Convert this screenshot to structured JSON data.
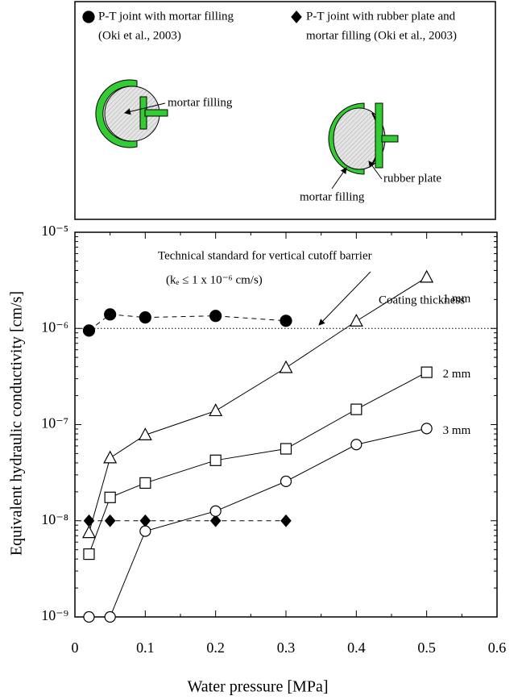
{
  "chart_data": {
    "type": "line",
    "x_label": "Water pressure [MPa]",
    "y_label": "Equivalent hydraulic conductivity [cm/s]",
    "xlim": [
      0,
      0.6
    ],
    "xticks": [
      0,
      0.1,
      0.2,
      0.3,
      0.4,
      0.5,
      0.6
    ],
    "ylim": [
      1e-09,
      1e-05
    ],
    "log_y": true,
    "yticks": [
      {
        "value": 1e-09,
        "label": "10⁻⁹"
      },
      {
        "value": 1e-08,
        "label": "10⁻⁸"
      },
      {
        "value": 1e-07,
        "label": "10⁻⁷"
      },
      {
        "value": 1e-06,
        "label": "10⁻⁶"
      },
      {
        "value": 1e-05,
        "label": "10⁻⁵"
      }
    ],
    "threshold": 1e-06,
    "annotations": [
      "Technical standard for vertical cutoff barrier",
      "(kₑ ≤ 1 x 10⁻⁶ cm/s)",
      "Coating thickness"
    ],
    "legend_panel": {
      "entries": [
        {
          "lines": [
            "P-T joint with mortar filling",
            "(Oki et al., 2003)"
          ],
          "labels": [
            "mortar filling"
          ]
        },
        {
          "lines": [
            "P-T joint with rubber plate and",
            "mortar filling (Oki et al., 2003)"
          ],
          "labels": [
            "rubber plate",
            "mortar filling"
          ]
        }
      ]
    },
    "series": [
      {
        "legend": 0,
        "marker": "circle-filled",
        "dashed": true,
        "color": "#000000",
        "x": [
          0.02,
          0.05,
          0.1,
          0.2,
          0.3
        ],
        "values": [
          9.5e-07,
          1.4e-06,
          1.3e-06,
          1.35e-06,
          1.2e-06
        ]
      },
      {
        "legend": 1,
        "marker": "diamond-filled",
        "dashed": true,
        "color": "#000000",
        "x": [
          0.02,
          0.05,
          0.1,
          0.2,
          0.3
        ],
        "values": [
          1e-08,
          1e-08,
          1e-08,
          1e-08,
          1e-08
        ]
      },
      {
        "name": "1 mm",
        "marker": "triangle-open",
        "dashed": false,
        "color": "#000000",
        "x": [
          0.02,
          0.05,
          0.1,
          0.2,
          0.3,
          0.4,
          0.5
        ],
        "values": [
          7.5e-09,
          4.5e-08,
          7.8e-08,
          1.39e-07,
          3.9e-07,
          1.19e-06,
          3.4e-06
        ]
      },
      {
        "name": "2 mm",
        "marker": "square-open",
        "dashed": false,
        "color": "#000000",
        "x": [
          0.02,
          0.05,
          0.1,
          0.2,
          0.3,
          0.4,
          0.5
        ],
        "values": [
          4.5e-09,
          1.75e-08,
          2.47e-08,
          4.25e-08,
          5.6e-08,
          1.44e-07,
          3.5e-07
        ]
      },
      {
        "name": "3 mm",
        "marker": "circle-open",
        "dashed": false,
        "color": "#000000",
        "x": [
          0.02,
          0.05,
          0.1,
          0.2,
          0.3,
          0.4,
          0.5
        ],
        "values": [
          1e-09,
          1e-09,
          7.8e-09,
          1.26e-08,
          2.57e-08,
          6.2e-08,
          9.1e-08
        ]
      }
    ]
  }
}
